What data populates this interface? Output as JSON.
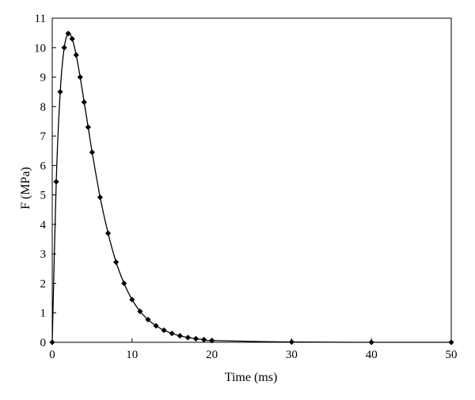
{
  "chart_data": {
    "type": "line",
    "title": "",
    "xlabel": "Time (ms)",
    "ylabel": "F (MPa)",
    "xlim": [
      0,
      50
    ],
    "ylim": [
      0,
      11
    ],
    "x_ticks": [
      0,
      10,
      20,
      30,
      40,
      50
    ],
    "y_ticks": [
      0,
      1,
      2,
      3,
      4,
      5,
      6,
      7,
      8,
      9,
      10,
      11
    ],
    "grid": false,
    "legend": "none",
    "marker": "diamond",
    "line_color": "#000000",
    "series": [
      {
        "x": [
          0,
          0.5,
          1,
          1.5,
          2,
          2.5,
          3,
          3.5,
          4,
          4.5,
          5,
          6,
          7,
          8,
          9,
          10,
          11,
          12,
          13,
          14,
          15,
          16,
          17,
          18,
          19,
          20,
          30,
          40,
          50
        ],
        "values": [
          0,
          5.45,
          8.5,
          10.0,
          10.48,
          10.3,
          9.75,
          9.0,
          8.15,
          7.3,
          6.45,
          4.92,
          3.7,
          2.72,
          2.0,
          1.45,
          1.05,
          0.77,
          0.56,
          0.41,
          0.3,
          0.22,
          0.16,
          0.12,
          0.09,
          0.06,
          0.01,
          0.0,
          0.0
        ]
      }
    ]
  }
}
